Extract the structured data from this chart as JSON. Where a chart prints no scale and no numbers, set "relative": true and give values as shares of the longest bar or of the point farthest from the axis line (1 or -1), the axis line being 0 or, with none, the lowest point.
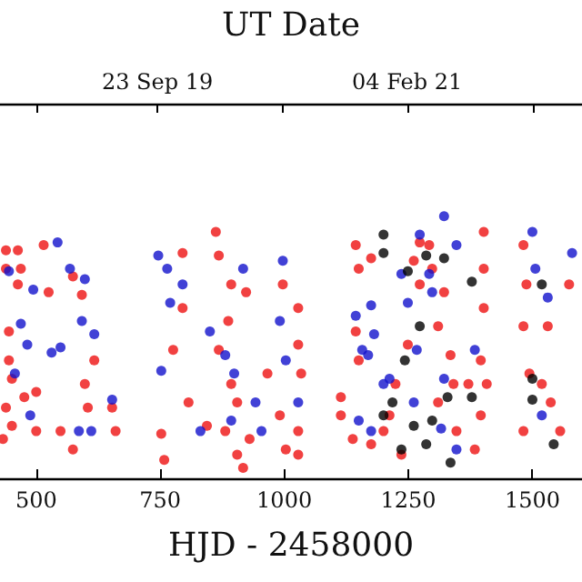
{
  "chart_data": {
    "type": "scatter",
    "relative": true,
    "xlabel": "HJD - 2458000",
    "x2label": "UT Date",
    "xlim": [
      427,
      1600
    ],
    "xticks": [
      500,
      750,
      1000,
      1250,
      1500
    ],
    "x2lim": [
      "2018-11-12",
      "2022-01-20"
    ],
    "x2ticks": [
      {
        "value": "2019-01-24",
        "label": null
      },
      {
        "value": "2019-09-23",
        "label": "23 Sep 19"
      },
      {
        "value": "2020-05-31",
        "label": null
      },
      {
        "value": "2021-02-04",
        "label": "04 Feb 21"
      },
      {
        "value": "2021-10-13",
        "label": null
      }
    ],
    "marker": "circle",
    "series": [
      {
        "color": "#ee1111",
        "x": [
          439,
          463,
          515,
          439,
          469,
          463,
          525,
          574,
          592,
          445,
          445,
          451,
          476,
          500,
          439,
          451,
          433,
          500,
          549,
          574,
          598,
          617,
          653,
          660,
          604,
          752,
          758,
          795,
          795,
          776,
          807,
          844,
          862,
          868,
          893,
          887,
          868,
          893,
          905,
          881,
          905,
          917,
          930,
          923,
          966,
          991,
          997,
          1003,
          1144,
          1150,
          1175,
          1144,
          1150,
          1114,
          1114,
          1138,
          1175,
          1200,
          1212,
          1224,
          1236,
          1261,
          1273,
          1273,
          1298,
          1310,
          1335,
          1347,
          1371,
          1384,
          1402,
          1402,
          1402,
          1396,
          1408,
          1396,
          1482,
          1488,
          1482,
          1494,
          1482,
          1519,
          1531,
          1537,
          1556,
          1574,
          1028,
          1028,
          1034,
          1028,
          1028,
          1310,
          1322,
          1249,
          1292,
          1341
        ],
        "values": [
          0.87,
          0.87,
          0.89,
          0.8,
          0.8,
          0.74,
          0.71,
          0.77,
          0.7,
          0.56,
          0.45,
          0.38,
          0.31,
          0.33,
          0.27,
          0.2,
          0.15,
          0.18,
          0.18,
          0.11,
          0.36,
          0.45,
          0.27,
          0.18,
          0.27,
          0.17,
          0.07,
          0.86,
          0.65,
          0.49,
          0.29,
          0.2,
          0.94,
          0.85,
          0.74,
          0.6,
          0.49,
          0.36,
          0.29,
          0.18,
          0.09,
          0.04,
          0.15,
          0.71,
          0.4,
          0.24,
          0.74,
          0.11,
          0.89,
          0.8,
          0.84,
          0.56,
          0.45,
          0.31,
          0.24,
          0.15,
          0.13,
          0.18,
          0.24,
          0.36,
          0.09,
          0.83,
          0.9,
          0.74,
          0.8,
          0.58,
          0.47,
          0.18,
          0.36,
          0.11,
          0.94,
          0.8,
          0.65,
          0.45,
          0.36,
          0.24,
          0.89,
          0.74,
          0.58,
          0.4,
          0.18,
          0.36,
          0.58,
          0.29,
          0.18,
          0.74,
          0.65,
          0.51,
          0.4,
          0.18,
          0.09,
          0.29,
          0.71,
          0.51,
          0.89,
          0.36
        ]
      },
      {
        "color": "#1111cc",
        "x": [
          543,
          445,
          494,
          568,
          598,
          592,
          617,
          549,
          469,
          482,
          531,
          457,
          488,
          586,
          611,
          653,
          752,
          746,
          764,
          795,
          770,
          850,
          881,
          899,
          917,
          893,
          942,
          954,
          991,
          997,
          1003,
          831,
          1322,
          1500,
          1144,
          1175,
          1181,
          1249,
          1267,
          1273,
          1292,
          1298,
          1169,
          1212,
          1200,
          1150,
          1175,
          1261,
          1322,
          1347,
          1384,
          1316,
          1531,
          1506,
          1580,
          1519,
          1028,
          1347,
          1236,
          1157
        ],
        "values": [
          0.9,
          0.79,
          0.72,
          0.8,
          0.76,
          0.6,
          0.55,
          0.5,
          0.59,
          0.51,
          0.48,
          0.4,
          0.24,
          0.18,
          0.18,
          0.3,
          0.41,
          0.85,
          0.8,
          0.74,
          0.67,
          0.56,
          0.47,
          0.4,
          0.8,
          0.22,
          0.29,
          0.18,
          0.6,
          0.83,
          0.45,
          0.18,
          1.0,
          0.94,
          0.62,
          0.66,
          0.55,
          0.67,
          0.49,
          0.93,
          0.78,
          0.71,
          0.47,
          0.38,
          0.36,
          0.22,
          0.18,
          0.29,
          0.38,
          0.11,
          0.49,
          0.19,
          0.69,
          0.8,
          0.86,
          0.24,
          0.29,
          0.89,
          0.78,
          0.49
        ]
      },
      {
        "color": "#000000",
        "x": [
          1200,
          1200,
          1249,
          1286,
          1322,
          1378,
          1273,
          1243,
          1218,
          1200,
          1236,
          1286,
          1335,
          1329,
          1378,
          1500,
          1500,
          1543,
          1519,
          1298,
          1261
        ],
        "values": [
          0.93,
          0.86,
          0.79,
          0.85,
          0.84,
          0.75,
          0.58,
          0.45,
          0.29,
          0.24,
          0.11,
          0.13,
          0.06,
          0.31,
          0.31,
          0.38,
          0.3,
          0.13,
          0.74,
          0.22,
          0.2
        ]
      }
    ]
  }
}
